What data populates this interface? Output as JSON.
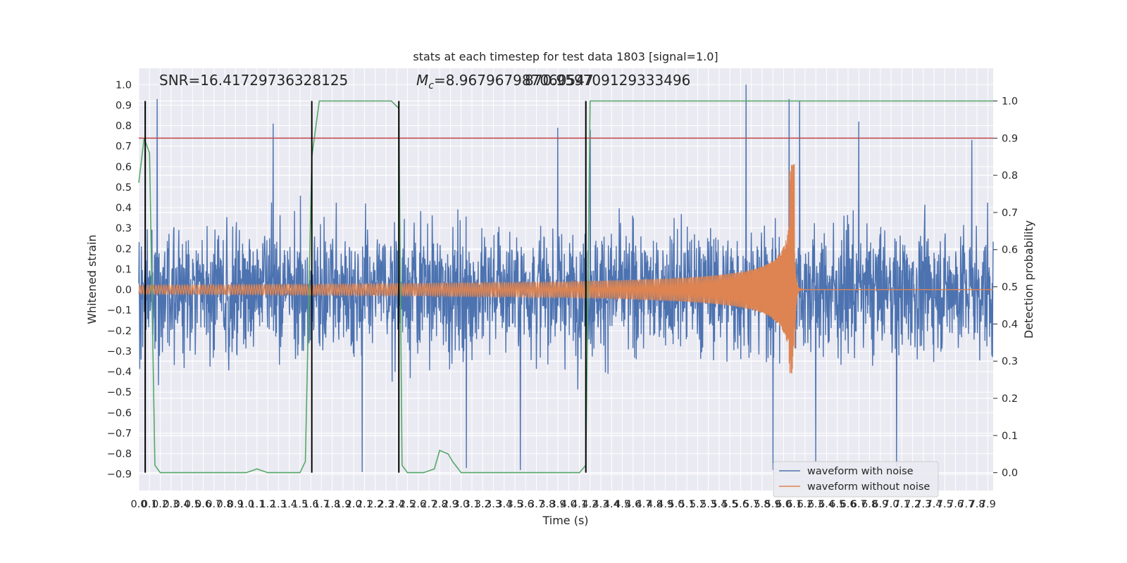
{
  "chart_data": {
    "type": "line",
    "title": "stats at each timestep for test data 1803 [signal=1.0]",
    "xlabel": "Time (s)",
    "ylabel": "Whitened strain",
    "y2label": "Detection probability",
    "xlim": [
      0.0,
      7.95
    ],
    "ylim": [
      -0.98,
      1.08
    ],
    "y2lim": [
      -0.048,
      1.088
    ],
    "x_ticks": [
      0.0,
      0.1,
      0.2,
      0.3,
      0.4,
      0.5,
      0.6,
      0.7,
      0.8,
      0.9,
      1.0,
      1.1,
      1.2,
      1.3,
      1.4,
      1.5,
      1.6,
      1.7,
      1.8,
      1.9,
      2.0,
      2.1,
      2.2,
      2.3,
      2.4,
      2.5,
      2.6,
      2.7,
      2.8,
      2.9,
      3.0,
      3.1,
      3.2,
      3.3,
      3.4,
      3.5,
      3.6,
      3.7,
      3.8,
      3.9,
      4.0,
      4.1,
      4.2,
      4.3,
      4.4,
      4.5,
      4.6,
      4.7,
      4.8,
      4.9,
      5.0,
      5.1,
      5.2,
      5.3,
      5.4,
      5.5,
      5.6,
      5.7,
      5.8,
      5.9,
      6.0,
      6.1,
      6.2,
      6.3,
      6.4,
      6.5,
      6.6,
      6.7,
      6.8,
      6.9,
      7.0,
      7.1,
      7.2,
      7.3,
      7.4,
      7.5,
      7.6,
      7.7,
      7.8,
      7.9
    ],
    "y_ticks": [
      1.0,
      0.9,
      0.8,
      0.7,
      0.6,
      0.5,
      0.4,
      0.3,
      0.2,
      0.1,
      0.0,
      -0.1,
      -0.2,
      -0.3,
      -0.4,
      -0.5,
      -0.6,
      -0.7,
      -0.8,
      -0.9
    ],
    "y2_ticks": [
      1.0,
      0.9,
      0.8,
      0.7,
      0.6,
      0.5,
      0.4,
      0.3,
      0.2,
      0.1,
      0.0
    ],
    "annotations": {
      "snr": "SNR=16.41729736328125",
      "mc_prefix": "M",
      "mc_sub": "c",
      "mc_value": "=8.967967987060547",
      "overlap": "870.959709129333496"
    },
    "threshold": {
      "y2": 0.9,
      "color": "#c44e52"
    },
    "vertical_markers": [
      0.06,
      1.61,
      2.42,
      4.16
    ],
    "series": [
      {
        "name": "waveform with noise",
        "color": "#4c72b0",
        "kind": "noise",
        "approx_envelope": {
          "typical_abs": 0.38,
          "max": 1.0,
          "min": -0.89
        },
        "spikes": [
          [
            0.17,
            0.93
          ],
          [
            1.25,
            0.81
          ],
          [
            3.9,
            0.79
          ],
          [
            4.2,
            0.78
          ],
          [
            5.65,
            1.0
          ],
          [
            6.05,
            0.93
          ],
          [
            6.15,
            0.92
          ],
          [
            6.7,
            0.82
          ],
          [
            7.75,
            0.73
          ],
          [
            2.08,
            -0.89
          ],
          [
            3.05,
            -0.87
          ],
          [
            3.55,
            -0.88
          ],
          [
            5.9,
            -0.88
          ],
          [
            6.3,
            -0.84
          ],
          [
            7.05,
            -0.86
          ]
        ]
      },
      {
        "name": "waveform without noise",
        "color": "#dd8452",
        "kind": "chirp",
        "merger_time": 6.1,
        "merger_peak": 0.61,
        "merger_trough": -0.41
      },
      {
        "name": "",
        "color": "#55a868",
        "axis": "y2",
        "x": [
          0.0,
          0.05,
          0.1,
          0.15,
          0.2,
          0.25,
          0.5,
          1.0,
          1.1,
          1.2,
          1.5,
          1.55,
          1.61,
          1.68,
          1.8,
          2.35,
          2.42,
          2.45,
          2.5,
          2.65,
          2.75,
          2.8,
          2.88,
          2.92,
          3.0,
          3.2,
          3.7,
          4.1,
          4.16,
          4.2,
          4.25,
          4.5,
          5.0,
          6.0,
          7.0,
          7.95
        ],
        "y": [
          0.78,
          0.9,
          0.86,
          0.02,
          0.0,
          0.0,
          0.0,
          0.0,
          0.01,
          0.0,
          0.0,
          0.03,
          0.85,
          1.0,
          1.0,
          1.0,
          0.98,
          0.02,
          0.0,
          0.0,
          0.01,
          0.06,
          0.05,
          0.03,
          0.0,
          0.0,
          0.0,
          0.0,
          0.02,
          1.0,
          1.0,
          1.0,
          1.0,
          1.0,
          1.0,
          1.0
        ]
      }
    ],
    "legend": {
      "placement": "lower-right",
      "entries": [
        "waveform with noise",
        "waveform without noise"
      ]
    },
    "grid": true
  }
}
